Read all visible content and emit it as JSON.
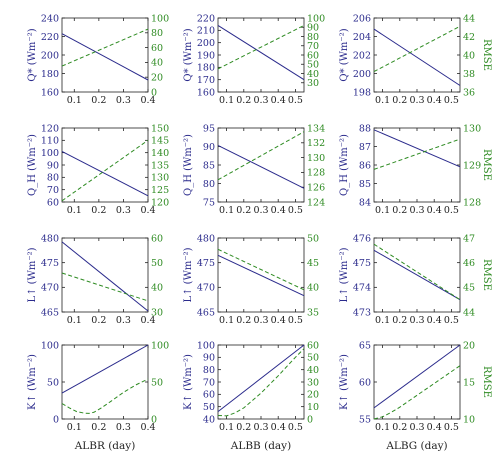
{
  "colors": {
    "left": "#2b2b8c",
    "right": "#2e8b22",
    "axis": "#222222"
  },
  "column_xlabels": [
    "ALBR (day)",
    "ALBB (day)",
    "ALBG (day)"
  ],
  "chart_data": [
    {
      "type": "line",
      "panel": "r1c1",
      "xlim": [
        0.05,
        0.4
      ],
      "xticks": [
        "0.1",
        "0.2",
        "0.3",
        "0.4"
      ],
      "ylabel": "Q* (Wm⁻²)",
      "ylim": [
        160,
        240
      ],
      "yticks": [
        "160",
        "180",
        "200",
        "220",
        "240"
      ],
      "ylabel_right": "",
      "ylim_right": [
        0,
        100
      ],
      "yticks_right": [
        "0",
        "20",
        "40",
        "60",
        "80",
        "100"
      ],
      "series": [
        {
          "axis": "left",
          "style": "solid",
          "x": [
            0.05,
            0.4
          ],
          "y": [
            223,
            173
          ]
        },
        {
          "axis": "right",
          "style": "dashed",
          "x": [
            0.05,
            0.4
          ],
          "y": [
            35,
            85
          ]
        }
      ]
    },
    {
      "type": "line",
      "panel": "r1c2",
      "xlim": [
        0.05,
        0.55
      ],
      "xticks": [
        "0.1",
        "0.2",
        "0.3",
        "0.4",
        "0.5"
      ],
      "ylabel": "Q* (Wm⁻²)",
      "ylim": [
        160,
        220
      ],
      "yticks": [
        "160",
        "170",
        "180",
        "190",
        "200",
        "210",
        "220"
      ],
      "ylabel_right": "",
      "ylim_right": [
        20,
        100
      ],
      "yticks_right": [
        "30",
        "40",
        "50",
        "60",
        "70",
        "80",
        "90",
        "100"
      ],
      "series": [
        {
          "axis": "left",
          "style": "solid",
          "x": [
            0.05,
            0.55
          ],
          "y": [
            214,
            170
          ]
        },
        {
          "axis": "right",
          "style": "dashed",
          "x": [
            0.05,
            0.55
          ],
          "y": [
            45,
            92
          ]
        }
      ]
    },
    {
      "type": "line",
      "panel": "r1c3",
      "xlim": [
        0.05,
        0.55
      ],
      "xticks": [
        "0.1",
        "0.2",
        "0.3",
        "0.4",
        "0.5"
      ],
      "ylabel": "Q* (Wm⁻²)",
      "ylim": [
        198,
        206
      ],
      "yticks": [
        "198",
        "200",
        "202",
        "204",
        "206"
      ],
      "ylabel_right": "RMSE",
      "ylim_right": [
        36,
        44
      ],
      "yticks_right": [
        "36",
        "38",
        "40",
        "42",
        "44"
      ],
      "series": [
        {
          "axis": "left",
          "style": "solid",
          "x": [
            0.05,
            0.55
          ],
          "y": [
            204.8,
            198.7
          ]
        },
        {
          "axis": "right",
          "style": "dashed",
          "x": [
            0.05,
            0.55
          ],
          "y": [
            38.2,
            43.1
          ]
        }
      ]
    },
    {
      "type": "line",
      "panel": "r2c1",
      "xlim": [
        0.05,
        0.4
      ],
      "xticks": [
        "0.1",
        "0.2",
        "0.3",
        "0.4"
      ],
      "ylabel": "Q_H (Wm⁻²)",
      "ylim": [
        60,
        120
      ],
      "yticks": [
        "60",
        "70",
        "80",
        "90",
        "100",
        "110",
        "120"
      ],
      "ylabel_right": "",
      "ylim_right": [
        120,
        150
      ],
      "yticks_right": [
        "120",
        "125",
        "130",
        "135",
        "140",
        "145",
        "150"
      ],
      "series": [
        {
          "axis": "left",
          "style": "solid",
          "x": [
            0.05,
            0.4
          ],
          "y": [
            101,
            65
          ]
        },
        {
          "axis": "right",
          "style": "dashed",
          "x": [
            0.05,
            0.4
          ],
          "y": [
            120.5,
            145
          ]
        }
      ]
    },
    {
      "type": "line",
      "panel": "r2c2",
      "xlim": [
        0.05,
        0.55
      ],
      "xticks": [
        "0.1",
        "0.2",
        "0.3",
        "0.4",
        "0.5"
      ],
      "ylabel": "Q_H (Wm⁻²)",
      "ylim": [
        75,
        95
      ],
      "yticks": [
        "75",
        "80",
        "85",
        "90",
        "95"
      ],
      "ylabel_right": "",
      "ylim_right": [
        124,
        134
      ],
      "yticks_right": [
        "124",
        "126",
        "128",
        "130",
        "132",
        "134"
      ],
      "series": [
        {
          "axis": "left",
          "style": "solid",
          "x": [
            0.05,
            0.55
          ],
          "y": [
            90.3,
            78.7
          ]
        },
        {
          "axis": "right",
          "style": "dashed",
          "x": [
            0.05,
            0.55
          ],
          "y": [
            127,
            133.5
          ]
        }
      ]
    },
    {
      "type": "line",
      "panel": "r2c3",
      "xlim": [
        0.05,
        0.55
      ],
      "xticks": [
        "0.1",
        "0.2",
        "0.3",
        "0.4",
        "0.5"
      ],
      "ylabel": "Q_H (Wm⁻²)",
      "ylim": [
        84,
        88
      ],
      "yticks": [
        "84",
        "85",
        "86",
        "87",
        "88"
      ],
      "ylabel_right": "RMSE",
      "ylim_right": [
        128,
        130
      ],
      "yticks_right": [
        "128",
        "129",
        "130"
      ],
      "series": [
        {
          "axis": "left",
          "style": "solid",
          "x": [
            0.05,
            0.55
          ],
          "y": [
            87.9,
            85.9
          ]
        },
        {
          "axis": "right",
          "style": "dashed",
          "x": [
            0.05,
            0.55
          ],
          "y": [
            128.88,
            129.7
          ]
        }
      ]
    },
    {
      "type": "line",
      "panel": "r3c1",
      "xlim": [
        0.05,
        0.4
      ],
      "xticks": [
        "0.1",
        "0.2",
        "0.3",
        "0.4"
      ],
      "ylabel": "L↑ (Wm⁻²)",
      "ylim": [
        465,
        480
      ],
      "yticks": [
        "465",
        "470",
        "475",
        "480"
      ],
      "ylabel_right": "",
      "ylim_right": [
        30,
        60
      ],
      "yticks_right": [
        "30",
        "40",
        "50",
        "60"
      ],
      "series": [
        {
          "axis": "left",
          "style": "solid",
          "x": [
            0.05,
            0.4
          ],
          "y": [
            479.2,
            465.2
          ]
        },
        {
          "axis": "right",
          "style": "dashed",
          "x": [
            0.05,
            0.4
          ],
          "y": [
            45.8,
            34.5
          ]
        }
      ]
    },
    {
      "type": "line",
      "panel": "r3c2",
      "xlim": [
        0.05,
        0.55
      ],
      "xticks": [
        "0.1",
        "0.2",
        "0.3",
        "0.4",
        "0.5"
      ],
      "ylabel": "L↑ (Wm⁻²)",
      "ylim": [
        465,
        480
      ],
      "yticks": [
        "465",
        "470",
        "475",
        "480"
      ],
      "ylabel_right": "",
      "ylim_right": [
        35,
        50
      ],
      "yticks_right": [
        "35",
        "40",
        "45",
        "50"
      ],
      "series": [
        {
          "axis": "left",
          "style": "solid",
          "x": [
            0.05,
            0.55
          ],
          "y": [
            476.5,
            468.3
          ]
        },
        {
          "axis": "right",
          "style": "dashed",
          "x": [
            0.05,
            0.55
          ],
          "y": [
            47.7,
            39.5
          ]
        }
      ]
    },
    {
      "type": "line",
      "panel": "r3c3",
      "xlim": [
        0.05,
        0.55
      ],
      "xticks": [
        "0.1",
        "0.2",
        "0.3",
        "0.4",
        "0.5"
      ],
      "ylabel": "L↑ (Wm⁻²)",
      "ylim": [
        473,
        476
      ],
      "yticks": [
        "473",
        "474",
        "475",
        "476"
      ],
      "ylabel_right": "RMSE",
      "ylim_right": [
        44,
        47
      ],
      "yticks_right": [
        "44",
        "45",
        "46",
        "47"
      ],
      "series": [
        {
          "axis": "left",
          "style": "solid",
          "x": [
            0.05,
            0.55
          ],
          "y": [
            475.5,
            473.5
          ]
        },
        {
          "axis": "right",
          "style": "dashed",
          "x": [
            0.05,
            0.55
          ],
          "y": [
            46.75,
            44.5
          ]
        }
      ]
    },
    {
      "type": "line",
      "panel": "r4c1",
      "xlim": [
        0.05,
        0.4
      ],
      "xticks": [
        "0.1",
        "0.2",
        "0.3",
        "0.4"
      ],
      "ylabel": "K↑ (Wm⁻²)",
      "ylim": [
        0,
        100
      ],
      "yticks": [
        "0",
        "50",
        "100"
      ],
      "ylabel_right": "",
      "ylim_right": [
        0,
        100
      ],
      "yticks_right": [
        "0",
        "50",
        "100"
      ],
      "series": [
        {
          "axis": "left",
          "style": "solid",
          "x": [
            0.05,
            0.4
          ],
          "y": [
            35,
            100
          ]
        },
        {
          "axis": "right",
          "style": "dashed",
          "x": [
            0.05,
            0.08,
            0.11,
            0.14,
            0.16,
            0.18,
            0.21,
            0.25,
            0.3,
            0.35,
            0.4
          ],
          "y": [
            21,
            15,
            10,
            8,
            7.5,
            9,
            15,
            24,
            36,
            46,
            54
          ]
        }
      ]
    },
    {
      "type": "line",
      "panel": "r4c2",
      "xlim": [
        0.05,
        0.55
      ],
      "xticks": [
        "0.1",
        "0.2",
        "0.3",
        "0.4",
        "0.5"
      ],
      "ylabel": "K↑ (Wm⁻²)",
      "ylim": [
        40,
        100
      ],
      "yticks": [
        "40",
        "50",
        "60",
        "70",
        "80",
        "90",
        "100"
      ],
      "ylabel_right": "",
      "ylim_right": [
        0,
        60
      ],
      "yticks_right": [
        "0",
        "10",
        "20",
        "30",
        "40",
        "50",
        "60"
      ],
      "series": [
        {
          "axis": "left",
          "style": "solid",
          "x": [
            0.05,
            0.55
          ],
          "y": [
            46,
            100
          ]
        },
        {
          "axis": "right",
          "style": "dashed",
          "x": [
            0.05,
            0.1,
            0.15,
            0.2,
            0.3,
            0.4,
            0.5,
            0.55
          ],
          "y": [
            2.8,
            2.5,
            5,
            9,
            21,
            35,
            50,
            57
          ]
        }
      ]
    },
    {
      "type": "line",
      "panel": "r4c3",
      "xlim": [
        0.05,
        0.55
      ],
      "xticks": [
        "0.1",
        "0.2",
        "0.3",
        "0.4",
        "0.5"
      ],
      "ylabel": "K↑ (Wm⁻²)",
      "ylim": [
        55,
        65
      ],
      "yticks": [
        "55",
        "60",
        "65"
      ],
      "ylabel_right": "RMSE",
      "ylim_right": [
        10,
        20
      ],
      "yticks_right": [
        "10",
        "15",
        "20"
      ],
      "series": [
        {
          "axis": "left",
          "style": "solid",
          "x": [
            0.05,
            0.55
          ],
          "y": [
            56.5,
            65
          ]
        },
        {
          "axis": "right",
          "style": "dashed",
          "x": [
            0.05,
            0.1,
            0.15,
            0.2,
            0.3,
            0.4,
            0.5,
            0.55
          ],
          "y": [
            10,
            10.3,
            10.9,
            11.6,
            13.2,
            14.8,
            16.4,
            17.2
          ]
        }
      ]
    }
  ]
}
